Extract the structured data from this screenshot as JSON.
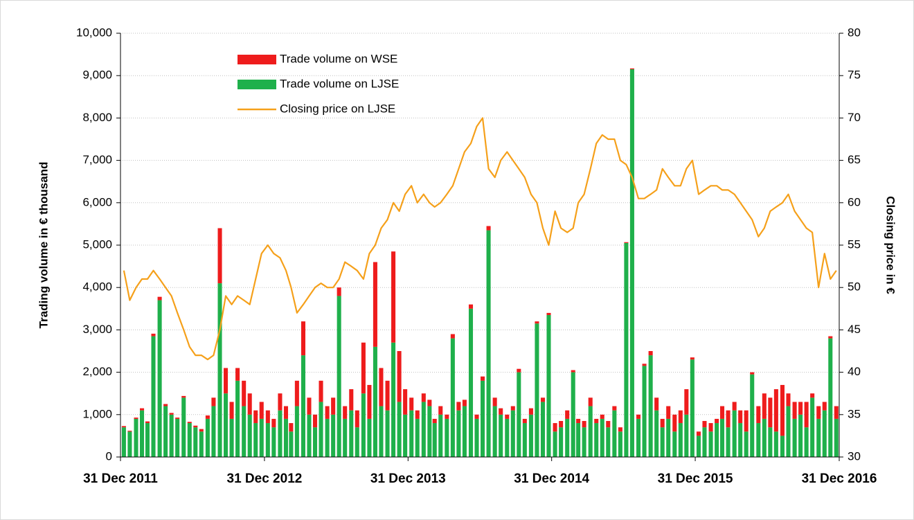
{
  "chart_data": {
    "type": "bar-line",
    "y_axis_label": "Trading volume in € thousand",
    "y2_axis_label": "Closing price in €",
    "x": [
      "2012-01-01",
      "2012-01-16",
      "2012-02-01",
      "2012-02-16",
      "2012-03-01",
      "2012-03-16",
      "2012-04-01",
      "2012-04-16",
      "2012-05-01",
      "2012-05-16",
      "2012-06-01",
      "2012-06-16",
      "2012-07-01",
      "2012-07-16",
      "2012-08-01",
      "2012-08-16",
      "2012-09-01",
      "2012-09-16",
      "2012-10-01",
      "2012-10-16",
      "2012-11-01",
      "2012-11-16",
      "2012-12-01",
      "2012-12-16",
      "2013-01-01",
      "2013-01-16",
      "2013-02-01",
      "2013-02-16",
      "2013-03-01",
      "2013-03-16",
      "2013-04-01",
      "2013-04-16",
      "2013-05-01",
      "2013-05-16",
      "2013-06-01",
      "2013-06-16",
      "2013-07-01",
      "2013-07-16",
      "2013-08-01",
      "2013-08-16",
      "2013-09-01",
      "2013-09-16",
      "2013-10-01",
      "2013-10-16",
      "2013-11-01",
      "2013-11-16",
      "2013-12-01",
      "2013-12-16",
      "2014-01-01",
      "2014-01-16",
      "2014-02-01",
      "2014-02-16",
      "2014-03-01",
      "2014-03-16",
      "2014-04-01",
      "2014-04-16",
      "2014-05-01",
      "2014-05-16",
      "2014-06-01",
      "2014-06-16",
      "2014-07-01",
      "2014-07-16",
      "2014-08-01",
      "2014-08-16",
      "2014-09-01",
      "2014-09-16",
      "2014-10-01",
      "2014-10-16",
      "2014-11-01",
      "2014-11-16",
      "2014-12-01",
      "2014-12-16",
      "2015-01-01",
      "2015-01-16",
      "2015-02-01",
      "2015-02-16",
      "2015-03-01",
      "2015-03-16",
      "2015-04-01",
      "2015-04-16",
      "2015-05-01",
      "2015-05-16",
      "2015-06-01",
      "2015-06-16",
      "2015-07-01",
      "2015-07-16",
      "2015-08-01",
      "2015-08-16",
      "2015-09-01",
      "2015-09-16",
      "2015-10-01",
      "2015-10-16",
      "2015-11-01",
      "2015-11-16",
      "2015-12-01",
      "2015-12-16",
      "2016-01-01",
      "2016-01-16",
      "2016-02-01",
      "2016-02-16",
      "2016-03-01",
      "2016-03-16",
      "2016-04-01",
      "2016-04-16",
      "2016-05-01",
      "2016-05-16",
      "2016-06-01",
      "2016-06-16",
      "2016-07-01",
      "2016-07-16",
      "2016-08-01",
      "2016-08-16",
      "2016-09-01",
      "2016-09-16",
      "2016-10-01",
      "2016-10-16",
      "2016-11-01",
      "2016-11-16",
      "2016-12-01",
      "2016-12-16"
    ],
    "series": [
      {
        "name": "Trade volume on LJSE",
        "color": "#1fb04b",
        "kind": "bar",
        "values": [
          700,
          600,
          900,
          1100,
          800,
          2850,
          3700,
          1200,
          1000,
          900,
          1400,
          800,
          700,
          600,
          900,
          1200,
          4100,
          1500,
          900,
          1800,
          1200,
          1000,
          800,
          900,
          800,
          700,
          1100,
          900,
          600,
          1200,
          2400,
          1000,
          700,
          1300,
          900,
          1000,
          3800,
          900,
          1100,
          700,
          1500,
          900,
          2600,
          1200,
          1100,
          2700,
          1300,
          1000,
          1100,
          900,
          1300,
          1200,
          800,
          1000,
          900,
          2800,
          1100,
          1200,
          3500,
          900,
          1800,
          5350,
          1200,
          1000,
          900,
          1100,
          2000,
          800,
          1000,
          3150,
          1300,
          3350,
          600,
          700,
          900,
          2000,
          800,
          700,
          1200,
          800,
          900,
          700,
          1100,
          600,
          5050,
          9150,
          900,
          2150,
          2400,
          1100,
          700,
          900,
          600,
          800,
          1000,
          2300,
          500,
          700,
          600,
          800,
          900,
          700,
          1100,
          800,
          600,
          1950,
          800,
          900,
          700,
          600,
          500,
          1200,
          900,
          1000,
          700,
          1400,
          900,
          1100,
          2800,
          900
        ]
      },
      {
        "name": "Trade volume on WSE",
        "color": "#ee1c1c",
        "kind": "bar",
        "values": [
          30,
          20,
          30,
          50,
          40,
          60,
          80,
          50,
          40,
          30,
          40,
          30,
          40,
          60,
          80,
          200,
          1300,
          600,
          400,
          300,
          600,
          500,
          300,
          400,
          300,
          200,
          400,
          300,
          200,
          600,
          800,
          400,
          300,
          500,
          300,
          400,
          200,
          300,
          500,
          400,
          1200,
          800,
          2000,
          900,
          700,
          2150,
          1200,
          600,
          300,
          200,
          200,
          150,
          100,
          200,
          100,
          100,
          200,
          150,
          100,
          100,
          100,
          100,
          200,
          150,
          100,
          100,
          80,
          100,
          150,
          50,
          100,
          50,
          200,
          150,
          200,
          50,
          100,
          150,
          200,
          100,
          100,
          150,
          100,
          100,
          20,
          20,
          100,
          50,
          100,
          300,
          200,
          300,
          400,
          300,
          600,
          50,
          100,
          150,
          200,
          100,
          300,
          400,
          200,
          300,
          500,
          50,
          400,
          600,
          700,
          1000,
          1200,
          300,
          400,
          300,
          600,
          100,
          300,
          200,
          50,
          300
        ]
      },
      {
        "name": "Closing price on LJSE",
        "color": "#f5a01a",
        "kind": "line",
        "axis": "y2",
        "values": [
          52,
          48.5,
          50,
          51,
          51,
          52,
          51,
          50,
          49,
          47,
          45,
          43,
          42,
          42,
          41.5,
          42,
          45,
          49,
          48,
          49,
          48.5,
          48,
          51,
          54,
          55,
          54,
          53.5,
          52,
          50,
          47,
          48,
          49,
          50,
          50.5,
          50,
          50,
          51,
          53,
          52.5,
          52,
          51,
          54,
          55,
          57,
          58,
          60,
          59,
          61,
          62,
          60,
          61,
          60,
          59.5,
          60,
          61,
          62,
          64,
          66,
          67,
          69,
          70,
          64,
          63,
          65,
          66,
          65,
          64,
          63,
          61,
          60,
          57,
          55,
          59,
          57,
          56.5,
          57,
          60,
          61,
          64,
          67,
          68,
          67.5,
          67.5,
          65,
          64.5,
          63,
          60.5,
          60.5,
          61,
          61.5,
          64,
          63,
          62,
          62,
          64,
          65,
          61,
          61.5,
          62,
          62,
          61.5,
          61.5,
          61,
          60,
          59,
          58,
          56,
          57,
          59,
          59.5,
          60,
          61,
          59,
          58,
          57,
          56.5,
          50,
          54,
          51,
          52
        ]
      }
    ],
    "legend_order": [
      1,
      0,
      2
    ],
    "xlim": [
      "2011-12-31",
      "2016-12-31"
    ],
    "xticks": [
      {
        "value": "2011-12-31",
        "label": "31 Dec 2011"
      },
      {
        "value": "2012-12-31",
        "label": "31 Dec 2012"
      },
      {
        "value": "2013-12-31",
        "label": "31 Dec 2013"
      },
      {
        "value": "2014-12-31",
        "label": "31 Dec 2014"
      },
      {
        "value": "2015-12-31",
        "label": "31 Dec 2015"
      },
      {
        "value": "2016-12-31",
        "label": "31 Dec 2016"
      }
    ],
    "ylim": [
      0,
      10000
    ],
    "yticks": [
      0,
      {
        "value": 1000,
        "label": "1,000"
      },
      {
        "value": 2000,
        "label": "2,000"
      },
      {
        "value": 3000,
        "label": "3,000"
      },
      {
        "value": 4000,
        "label": "4,000"
      },
      {
        "value": 5000,
        "label": "5,000"
      },
      {
        "value": 6000,
        "label": "6,000"
      },
      {
        "value": 7000,
        "label": "7,000"
      },
      {
        "value": 8000,
        "label": "8,000"
      },
      {
        "value": 9000,
        "label": "9,000"
      },
      {
        "value": 10000,
        "label": "10,000"
      }
    ],
    "y2lim": [
      30,
      80
    ],
    "y2ticks": [
      30,
      35,
      40,
      45,
      50,
      55,
      60,
      65,
      70,
      75,
      80
    ],
    "grid": true
  }
}
